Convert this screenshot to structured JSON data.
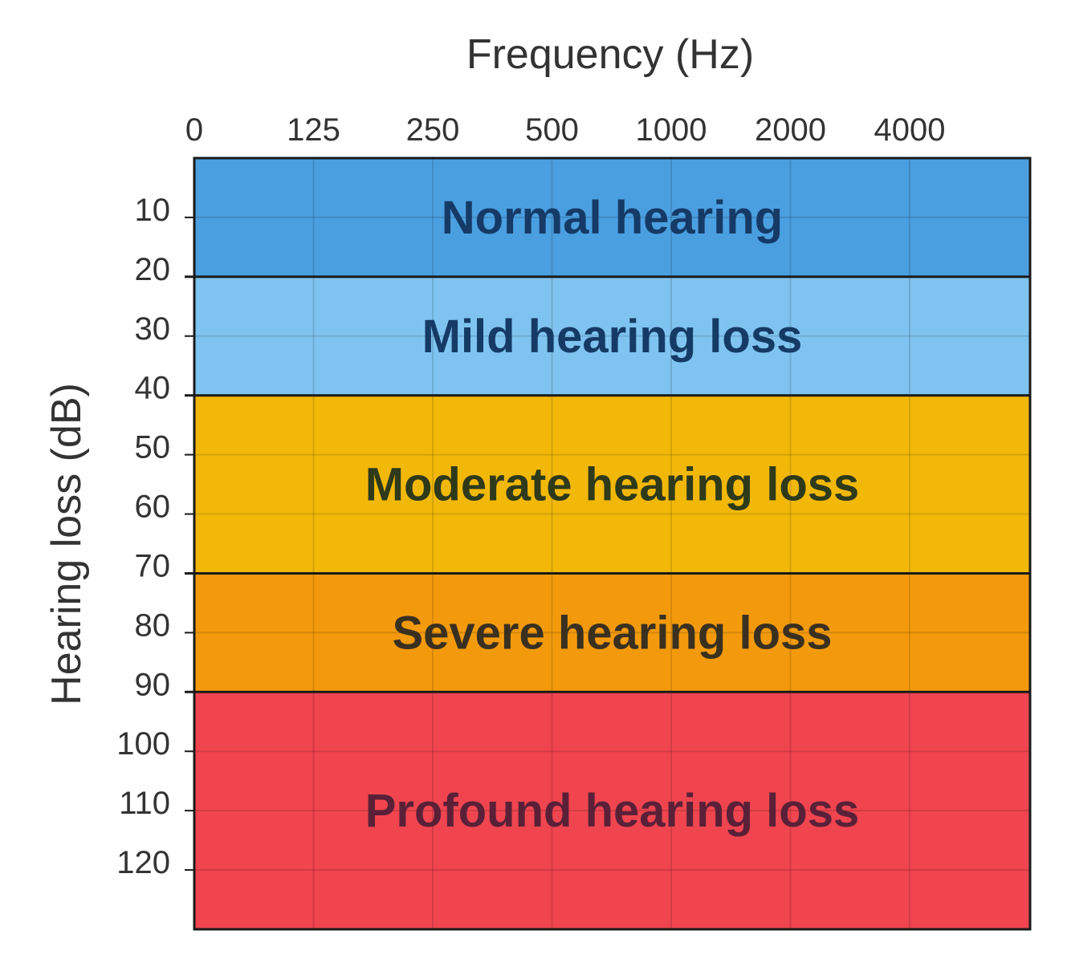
{
  "chart_data": {
    "type": "heatmap",
    "xlabel": "Frequency (Hz)",
    "ylabel": "Hearing loss (dB)",
    "x_ticks": [
      "0",
      "125",
      "250",
      "500",
      "1000",
      "2000",
      "4000"
    ],
    "y_ticks": [
      10,
      20,
      30,
      40,
      50,
      60,
      70,
      80,
      90,
      100,
      110,
      120
    ],
    "ylim": [
      0,
      130
    ],
    "y_inverted": true,
    "grid": true,
    "bands": [
      {
        "label": "Normal hearing",
        "from_db": 0,
        "to_db": 20,
        "color": "#4a9fe0",
        "text_color": "#163a66"
      },
      {
        "label": "Mild hearing loss",
        "from_db": 20,
        "to_db": 40,
        "color": "#7fc4f0",
        "text_color": "#163a66"
      },
      {
        "label": "Moderate hearing loss",
        "from_db": 40,
        "to_db": 70,
        "color": "#f2b808",
        "text_color": "#2e3a1a"
      },
      {
        "label": "Severe hearing loss",
        "from_db": 70,
        "to_db": 90,
        "color": "#f39a0c",
        "text_color": "#3a3020"
      },
      {
        "label": "Profound hearing loss",
        "from_db": 90,
        "to_db": 130,
        "color": "#f0454f",
        "text_color": "#5a2038"
      }
    ]
  }
}
